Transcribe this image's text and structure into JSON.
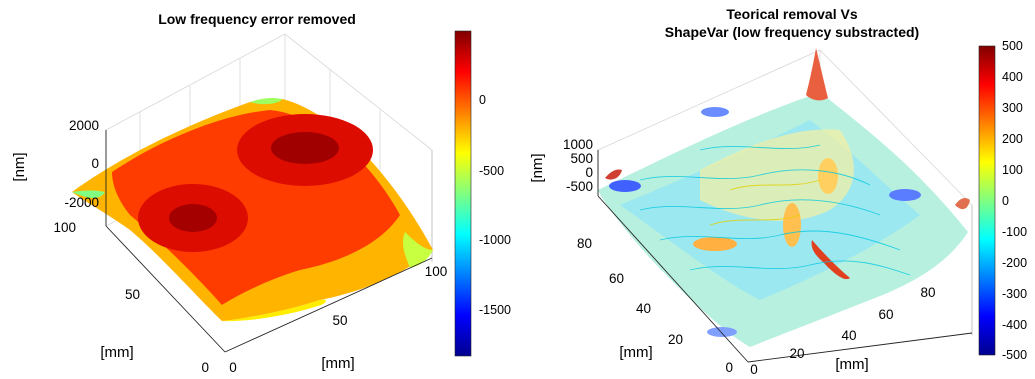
{
  "chart_data": [
    {
      "type": "surface",
      "title": "Low frequency error removed",
      "xlabel": "[mm]",
      "ylabel": "[mm]",
      "zlabel": "[nm]",
      "x_ticks": [
        "0",
        "50",
        "100"
      ],
      "y_ticks": [
        "0",
        "50",
        "100"
      ],
      "z_ticks": [
        "-2000",
        "0",
        "2000"
      ],
      "xlim": [
        0,
        100
      ],
      "ylim": [
        0,
        100
      ],
      "zlim": [
        -2000,
        2000
      ],
      "colorbar": {
        "ticks": [
          "0",
          "-500",
          "-1000",
          "-1500"
        ],
        "range": [
          -1850,
          450
        ],
        "colormap": "jet"
      },
      "grid": true
    },
    {
      "type": "surface",
      "title": [
        "Teorical removal Vs",
        "ShapeVar (low frequency substracted)"
      ],
      "xlabel": "[mm]",
      "ylabel": "[mm]",
      "zlabel": "[nm]",
      "x_ticks": [
        "0",
        "20",
        "40",
        "60",
        "80"
      ],
      "y_ticks": [
        "0",
        "20",
        "40",
        "60",
        "80"
      ],
      "z_ticks": [
        "-500",
        "0",
        "500",
        "1000"
      ],
      "xlim": [
        0,
        100
      ],
      "ylim": [
        0,
        100
      ],
      "zlim": [
        -700,
        1200
      ],
      "colorbar": {
        "ticks": [
          "500",
          "400",
          "300",
          "200",
          "100",
          "0",
          "-100",
          "-200",
          "-300",
          "-400",
          "-500"
        ],
        "range": [
          -500,
          500
        ],
        "colormap": "jet"
      },
      "grid": true
    }
  ]
}
